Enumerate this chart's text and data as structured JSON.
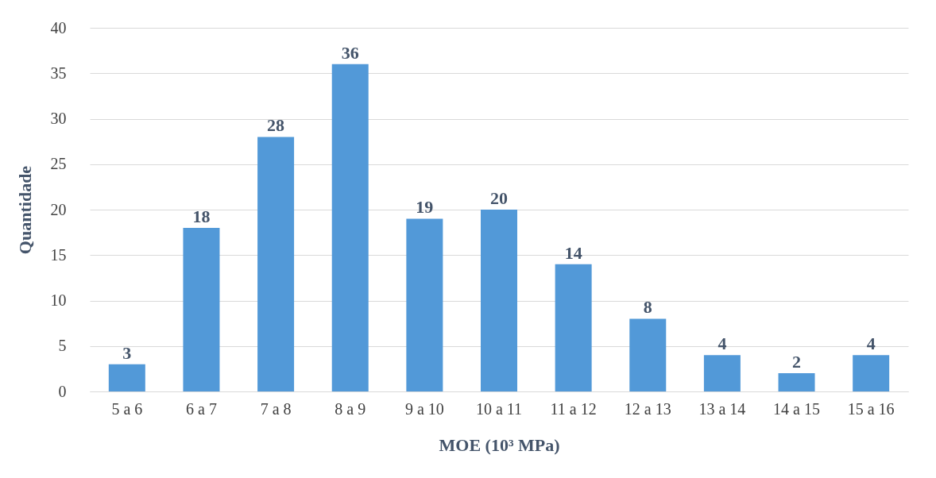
{
  "chart_data": {
    "type": "bar",
    "xlabel": "MOE (10³ MPa)",
    "ylabel": "Quantidade",
    "categories": [
      "5 a 6",
      "6 a 7",
      "7 a 8",
      "8 a 9",
      "9 a 10",
      "10 a 11",
      "11 a 12",
      "12 a 13",
      "13 a 14",
      "14 a 15",
      "15 a 16"
    ],
    "values": [
      3,
      18,
      28,
      36,
      19,
      20,
      14,
      8,
      4,
      2,
      4
    ],
    "color": "#5299d8",
    "ylim": [
      0,
      40
    ],
    "yticks": [
      0,
      5,
      10,
      15,
      20,
      25,
      30,
      35,
      40
    ],
    "grid": "y",
    "data_labels": true
  }
}
